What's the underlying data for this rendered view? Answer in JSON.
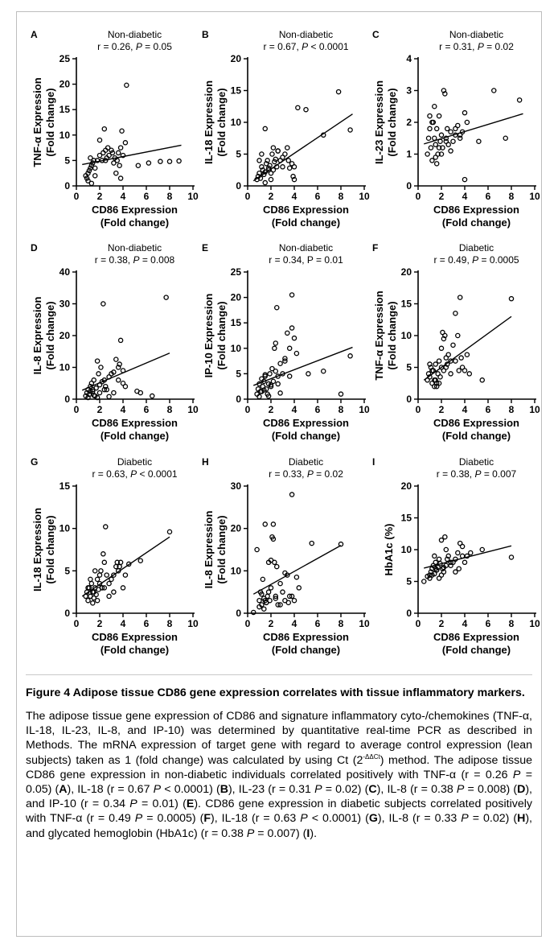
{
  "chart_data": [
    {
      "panel": "A",
      "title": "Non-diabetic",
      "stat_r": "r = 0.26, ",
      "stat_p_italic": "P",
      "stat_p_rest": " = 0.05",
      "type": "scatter",
      "xlabel": [
        "CD86 Expression",
        "(Fold change)"
      ],
      "ylabel": [
        "TNF-α Expression",
        "(Fold change)"
      ],
      "xlim": [
        0,
        10
      ],
      "ylim": [
        0,
        25
      ],
      "xticks": [
        0,
        2,
        4,
        6,
        8,
        10
      ],
      "yticks": [
        0,
        5,
        10,
        15,
        20,
        25
      ],
      "x": [
        0.8,
        1.0,
        1.1,
        1.2,
        1.3,
        1.4,
        1.5,
        1.6,
        0.9,
        1.2,
        1.0,
        1.3,
        1.6,
        1.8,
        2.0,
        2.2,
        2.3,
        2.5,
        2.6,
        2.7,
        2.8,
        3.0,
        3.1,
        3.3,
        3.5,
        3.6,
        3.7,
        3.8,
        3.9,
        4.0,
        4.2,
        2.0,
        2.4,
        2.5,
        3.2,
        3.4,
        3.8,
        4.3,
        5.3,
        6.2,
        7.2,
        8.0,
        8.8
      ],
      "y": [
        2.0,
        2.5,
        3.0,
        3.5,
        4.0,
        4.5,
        5.0,
        2.0,
        1.5,
        5.5,
        1.0,
        0.5,
        3.5,
        5.0,
        6.0,
        5.0,
        6.5,
        7.0,
        5.5,
        7.5,
        6.0,
        7.0,
        6.5,
        5.5,
        5.0,
        6.5,
        4.0,
        7.5,
        10.8,
        6.0,
        8.5,
        9.0,
        11.2,
        5.0,
        4.5,
        2.5,
        1.5,
        19.8,
        4.0,
        4.5,
        4.8,
        4.8,
        4.9
      ],
      "fit": [
        [
          0.5,
          4.2
        ],
        [
          9.0,
          8.0
        ]
      ]
    },
    {
      "panel": "B",
      "title": "Non-diabetic",
      "stat_r": "r = 0.67, ",
      "stat_p_italic": "P",
      "stat_p_rest": " < 0.0001",
      "type": "scatter",
      "xlabel": [
        "CD86 Expression",
        "(Fold change)"
      ],
      "ylabel": [
        "IL-18 Expression",
        "(Fold change)"
      ],
      "xlim": [
        0,
        10
      ],
      "ylim": [
        0,
        20
      ],
      "xticks": [
        0,
        2,
        4,
        6,
        8,
        10
      ],
      "yticks": [
        0,
        5,
        10,
        15,
        20
      ],
      "x": [
        0.8,
        0.9,
        1.0,
        1.1,
        1.2,
        1.3,
        1.4,
        1.5,
        1.6,
        1.7,
        1.8,
        1.9,
        2.0,
        2.1,
        2.2,
        2.3,
        2.4,
        2.5,
        2.6,
        2.8,
        3.0,
        3.2,
        3.4,
        3.6,
        3.8,
        3.9,
        4.0,
        1.0,
        1.2,
        1.5,
        1.8,
        2.2,
        2.6,
        3.0,
        3.5,
        4.0,
        4.3,
        5.0,
        6.5,
        7.8,
        8.8,
        1.5,
        2.0
      ],
      "y": [
        1.0,
        1.5,
        2.0,
        1.2,
        3.0,
        2.5,
        1.8,
        2.2,
        3.5,
        4.0,
        2.8,
        3.2,
        2.0,
        5.0,
        2.5,
        3.8,
        4.2,
        3.0,
        5.5,
        4.0,
        3.0,
        5.0,
        6.0,
        2.8,
        3.5,
        1.5,
        1.0,
        4.0,
        5.0,
        9.0,
        2.5,
        6.0,
        5.5,
        4.5,
        4.0,
        3.0,
        12.3,
        12.0,
        8.0,
        14.8,
        8.8,
        0.5,
        1.0
      ],
      "fit": [
        [
          0.5,
          0.8
        ],
        [
          9.0,
          11.3
        ]
      ]
    },
    {
      "panel": "C",
      "title": "Non-diabetic",
      "stat_r": "r = 0.31, ",
      "stat_p_italic": "P",
      "stat_p_rest": " = 0.02",
      "type": "scatter",
      "xlabel": [
        "CD86 Expression",
        "(Fold change)"
      ],
      "ylabel": [
        "IL-23 Expression",
        "(Fold change)"
      ],
      "xlim": [
        0,
        10
      ],
      "ylim": [
        0,
        4
      ],
      "xticks": [
        0,
        2,
        4,
        6,
        8,
        10
      ],
      "yticks": [
        0,
        1,
        2,
        3,
        4
      ],
      "x": [
        0.8,
        0.9,
        1.0,
        1.1,
        1.2,
        1.3,
        1.4,
        1.5,
        1.6,
        1.7,
        1.8,
        1.9,
        2.0,
        2.1,
        2.2,
        2.3,
        2.4,
        2.5,
        2.6,
        2.8,
        3.0,
        3.2,
        3.4,
        3.6,
        3.8,
        4.0,
        4.2,
        1.0,
        1.2,
        1.5,
        1.8,
        2.0,
        2.4,
        2.8,
        3.2,
        3.6,
        4.0,
        5.2,
        6.5,
        7.5,
        8.7,
        1.4,
        1.6
      ],
      "y": [
        1.0,
        1.5,
        1.8,
        1.2,
        0.8,
        2.0,
        1.5,
        1.3,
        1.8,
        1.0,
        2.2,
        1.4,
        1.6,
        1.2,
        3.0,
        2.9,
        1.5,
        1.8,
        1.3,
        1.7,
        1.4,
        1.6,
        1.9,
        1.6,
        1.7,
        2.3,
        2.0,
        2.2,
        2.0,
        0.9,
        1.2,
        1.0,
        1.4,
        1.1,
        1.8,
        1.5,
        0.2,
        1.4,
        3.0,
        1.5,
        2.7,
        2.5,
        0.7
      ],
      "fit": [
        [
          0.5,
          1.32
        ],
        [
          9.0,
          2.27
        ]
      ]
    },
    {
      "panel": "D",
      "title": "Non-diabetic",
      "stat_r": "r = 0.38, ",
      "stat_p_italic": "P",
      "stat_p_rest": " = 0.008",
      "type": "scatter",
      "xlabel": [
        "CD86 Expression",
        "(Fold change)"
      ],
      "ylabel": [
        "IL-8 Expression",
        "(Fold change)"
      ],
      "xlim": [
        0,
        10
      ],
      "ylim": [
        0,
        40
      ],
      "xticks": [
        0,
        2,
        4,
        6,
        8,
        10
      ],
      "yticks": [
        0,
        10,
        20,
        30,
        40
      ],
      "x": [
        0.8,
        0.9,
        1.0,
        1.1,
        1.2,
        1.3,
        1.4,
        1.5,
        1.6,
        1.7,
        1.8,
        1.9,
        2.0,
        2.1,
        2.2,
        2.3,
        2.4,
        2.5,
        2.6,
        2.8,
        3.0,
        3.2,
        3.4,
        3.6,
        3.8,
        4.0,
        4.2,
        1.0,
        1.2,
        1.5,
        1.8,
        2.0,
        2.4,
        2.8,
        3.2,
        3.6,
        4.0,
        5.2,
        5.5,
        6.5,
        7.7,
        1.4,
        3.7
      ],
      "y": [
        1.0,
        2.0,
        3.0,
        1.5,
        4.0,
        5.0,
        2.5,
        6.0,
        1.0,
        3.5,
        0.5,
        8.0,
        2.0,
        10.0,
        5.5,
        30.0,
        6.0,
        4.0,
        3.0,
        7.0,
        8.0,
        2.0,
        12.5,
        10.0,
        18.5,
        9.0,
        4.0,
        0.5,
        2.5,
        1.2,
        12.0,
        4.5,
        3.0,
        0.8,
        8.5,
        6.0,
        5.0,
        2.5,
        2.0,
        1.0,
        32.0,
        3.0,
        11.0
      ],
      "fit": [
        [
          0.5,
          2.8
        ],
        [
          8.0,
          14.5
        ]
      ]
    },
    {
      "panel": "E",
      "title": "Non-diabetic",
      "stat_r": "r = 0.34, P = 0.01",
      "type": "scatter",
      "xlabel": [
        "CD86 Expression",
        "(Fold change)"
      ],
      "ylabel": [
        "IP-10 Expression",
        "(Fold change)"
      ],
      "xlim": [
        0,
        10
      ],
      "ylim": [
        0,
        25
      ],
      "xticks": [
        0,
        2,
        4,
        6,
        8,
        10
      ],
      "yticks": [
        0,
        5,
        10,
        15,
        20,
        25
      ],
      "x": [
        0.8,
        0.9,
        1.0,
        1.1,
        1.2,
        1.3,
        1.4,
        1.5,
        1.6,
        1.7,
        1.8,
        1.9,
        2.0,
        2.1,
        2.2,
        2.3,
        2.4,
        2.5,
        2.6,
        2.8,
        3.0,
        3.2,
        3.4,
        3.6,
        3.8,
        4.0,
        4.2,
        1.0,
        1.2,
        1.5,
        1.8,
        2.0,
        2.4,
        2.8,
        3.2,
        3.6,
        3.8,
        5.2,
        6.5,
        8.0,
        8.8,
        1.4,
        2.6
      ],
      "y": [
        1.0,
        2.0,
        3.0,
        1.5,
        4.0,
        2.5,
        3.5,
        4.5,
        2.0,
        1.0,
        3.0,
        5.0,
        2.5,
        6.0,
        3.5,
        10.0,
        11.0,
        18.0,
        4.5,
        7.0,
        5.0,
        7.5,
        13.0,
        10.0,
        20.5,
        12.0,
        9.0,
        0.5,
        1.5,
        4.8,
        0.6,
        2.8,
        5.5,
        1.2,
        8.0,
        4.5,
        14.0,
        5.0,
        5.5,
        1.0,
        8.5,
        1.8,
        3.0
      ],
      "fit": [
        [
          0.5,
          2.7
        ],
        [
          9.0,
          10.2
        ]
      ]
    },
    {
      "panel": "F",
      "title": "Diabetic",
      "stat_r": "r = 0.49, ",
      "stat_p_italic": "P",
      "stat_p_rest": " = 0.0005",
      "type": "scatter",
      "xlabel": [
        "CD86 Expression",
        "(Fold change)"
      ],
      "ylabel": [
        "TNF-α Expression",
        "(Fold change)"
      ],
      "xlim": [
        0,
        10
      ],
      "ylim": [
        0,
        20
      ],
      "xticks": [
        0,
        2,
        4,
        6,
        8,
        10
      ],
      "yticks": [
        0,
        5,
        10,
        15,
        20
      ],
      "x": [
        0.8,
        0.9,
        1.0,
        1.1,
        1.2,
        1.3,
        1.4,
        1.5,
        1.6,
        1.7,
        1.8,
        1.9,
        2.0,
        2.1,
        2.2,
        2.3,
        2.4,
        2.5,
        2.6,
        2.8,
        3.0,
        3.2,
        3.4,
        3.6,
        3.8,
        4.0,
        4.2,
        1.0,
        1.2,
        1.5,
        1.8,
        2.0,
        2.4,
        2.8,
        3.2,
        3.5,
        3.7,
        4.4,
        5.5,
        8.0,
        1.4,
        1.6,
        2.2
      ],
      "y": [
        3.0,
        4.0,
        3.5,
        5.0,
        2.5,
        4.5,
        3.0,
        5.5,
        2.0,
        4.0,
        6.0,
        3.5,
        5.0,
        10.5,
        4.5,
        10.0,
        6.5,
        5.5,
        7.0,
        4.0,
        8.5,
        6.0,
        10.0,
        16.0,
        5.0,
        4.5,
        7.0,
        5.5,
        4.5,
        3.0,
        2.5,
        8.0,
        5.0,
        6.0,
        13.5,
        4.5,
        6.5,
        4.0,
        3.0,
        15.8,
        2.0,
        2.5,
        9.5
      ],
      "fit": [
        [
          0.5,
          3.0
        ],
        [
          8.0,
          13.0
        ]
      ]
    },
    {
      "panel": "G",
      "title": "Diabetic",
      "stat_r": "r = 0.63, ",
      "stat_p_italic": "P",
      "stat_p_rest": " < 0.0001",
      "type": "scatter",
      "xlabel": [
        "CD86 Expression",
        "(Fold change)"
      ],
      "ylabel": [
        "IL-18 Expression",
        "(Fold change)"
      ],
      "xlim": [
        0,
        10
      ],
      "ylim": [
        0,
        15
      ],
      "xticks": [
        0,
        2,
        4,
        6,
        8,
        10
      ],
      "yticks": [
        0,
        5,
        10,
        15
      ],
      "x": [
        0.8,
        0.9,
        1.0,
        1.1,
        1.2,
        1.3,
        1.4,
        1.5,
        1.6,
        1.7,
        1.8,
        1.9,
        2.0,
        2.1,
        2.2,
        2.3,
        2.4,
        2.5,
        2.6,
        2.8,
        3.0,
        3.2,
        3.4,
        3.6,
        3.8,
        4.0,
        4.2,
        1.0,
        1.2,
        1.5,
        1.8,
        2.0,
        2.4,
        2.8,
        3.2,
        3.5,
        3.7,
        4.5,
        5.5,
        8.0,
        1.4,
        1.6,
        2.2
      ],
      "y": [
        2.0,
        2.5,
        1.5,
        3.0,
        2.0,
        3.5,
        2.5,
        1.8,
        3.0,
        2.2,
        4.0,
        2.8,
        3.5,
        5.0,
        3.0,
        7.0,
        6.0,
        10.2,
        4.5,
        3.5,
        4.0,
        2.5,
        5.5,
        5.0,
        6.0,
        3.0,
        4.5,
        3.0,
        4.0,
        2.5,
        1.5,
        4.5,
        3.0,
        2.0,
        4.5,
        6.0,
        5.5,
        5.8,
        6.2,
        9.6,
        1.2,
        5.0,
        3.0
      ],
      "fit": [
        [
          0.5,
          2.0
        ],
        [
          8.0,
          9.0
        ]
      ]
    },
    {
      "panel": "H",
      "title": "Diabetic",
      "stat_r": "r = 0.33, ",
      "stat_p_italic": "P",
      "stat_p_rest": " = 0.02",
      "type": "scatter",
      "xlabel": [
        "CD86 Expression",
        "(Fold change)"
      ],
      "ylabel": [
        "IL-8 Expression",
        "(Fold change)"
      ],
      "xlim": [
        0,
        10
      ],
      "ylim": [
        0,
        30
      ],
      "xticks": [
        0,
        2,
        4,
        6,
        8,
        10
      ],
      "yticks": [
        0,
        10,
        20,
        30
      ],
      "x": [
        0.5,
        0.8,
        1.0,
        1.1,
        1.2,
        1.3,
        1.4,
        1.5,
        1.6,
        1.7,
        1.8,
        1.9,
        2.0,
        2.1,
        2.2,
        2.3,
        2.4,
        2.5,
        2.6,
        2.8,
        3.0,
        3.2,
        3.4,
        3.6,
        3.8,
        4.0,
        4.2,
        1.0,
        1.2,
        1.5,
        1.8,
        2.0,
        2.4,
        2.8,
        3.2,
        3.5,
        3.8,
        4.4,
        5.5,
        8.0,
        1.4,
        1.6,
        2.2
      ],
      "y": [
        0.2,
        15.0,
        3.0,
        5.0,
        2.0,
        8.0,
        3.5,
        21.0,
        2.5,
        4.0,
        12.0,
        3.0,
        6.0,
        18.0,
        21.0,
        12.0,
        4.0,
        11.0,
        2.0,
        7.0,
        5.0,
        3.0,
        9.0,
        4.0,
        28.0,
        3.0,
        8.5,
        1.5,
        4.5,
        3.0,
        5.0,
        12.5,
        3.5,
        2.0,
        9.5,
        2.5,
        4.0,
        6.0,
        16.5,
        16.3,
        1.0,
        2.5,
        17.5
      ],
      "fit": [
        [
          0.5,
          4.5
        ],
        [
          8.0,
          16.0
        ]
      ]
    },
    {
      "panel": "I",
      "title": "Diabetic",
      "stat_r": "r = 0.38, ",
      "stat_p_italic": "P",
      "stat_p_rest": " = 0.007",
      "type": "scatter",
      "xlabel": [
        "CD86 Expression",
        "(Fold change)"
      ],
      "ylabel": [
        "HbA1c (%)"
      ],
      "xlim": [
        0,
        10
      ],
      "ylim": [
        0,
        20
      ],
      "xticks": [
        0,
        2,
        4,
        6,
        8,
        10
      ],
      "yticks": [
        0,
        5,
        10,
        15,
        20
      ],
      "x": [
        0.5,
        0.8,
        1.0,
        1.1,
        1.2,
        1.3,
        1.4,
        1.5,
        1.6,
        1.7,
        1.8,
        1.9,
        2.0,
        2.1,
        2.2,
        2.3,
        2.4,
        2.5,
        2.6,
        2.8,
        3.0,
        3.2,
        3.4,
        3.6,
        3.8,
        4.0,
        4.2,
        1.0,
        1.2,
        1.5,
        1.8,
        2.0,
        2.4,
        2.8,
        3.2,
        3.5,
        3.8,
        4.5,
        5.5,
        8.0,
        1.4,
        1.6,
        2.2
      ],
      "y": [
        5.0,
        5.8,
        6.0,
        6.5,
        7.0,
        7.5,
        6.2,
        8.0,
        6.8,
        7.2,
        8.5,
        7.8,
        11.5,
        7.0,
        6.5,
        12.0,
        10.0,
        8.5,
        9.0,
        7.5,
        8.0,
        8.5,
        9.5,
        11.0,
        10.5,
        8.0,
        9.0,
        5.5,
        6.0,
        7.0,
        5.5,
        6.0,
        7.5,
        8.0,
        6.5,
        7.0,
        9.0,
        9.5,
        10.0,
        8.8,
        9.0,
        6.8,
        7.2
      ],
      "fit": [
        [
          0.5,
          7.1
        ],
        [
          8.0,
          10.6
        ]
      ]
    }
  ],
  "caption": {
    "title": "Figure 4 Adipose tissue CD86 gene expression correlates with tissue inflammatory markers.",
    "p1": "The adipose tissue gene expression of CD86 and signature inflammatory cyto-/chemokines (TNF-α, IL-18, IL-23, IL-8, and IP-10) was determined by quantitative real-time PCR as described in Methods. The mRNA expression of target gene with regard to average control expression (lean subjects) taken as 1 (fold change) was calculated by using Ct (2",
    "sup": "-ΔΔCt",
    "p2": ") method. The adipose tissue CD86 gene expression in non-diabetic individuals correlated positively with TNF-α (r = 0.26 ",
    "segments": [
      {
        "t": "P",
        "s": "i"
      },
      {
        "t": " = 0.05) ("
      },
      {
        "t": "A",
        "s": "b"
      },
      {
        "t": "), IL-18 (r = 0.67 "
      },
      {
        "t": "P",
        "s": "i"
      },
      {
        "t": " < 0.0001) ("
      },
      {
        "t": "B",
        "s": "b"
      },
      {
        "t": "), IL-23 (r = 0.31 "
      },
      {
        "t": "P",
        "s": "i"
      },
      {
        "t": " = 0.02) ("
      },
      {
        "t": "C",
        "s": "b"
      },
      {
        "t": "), IL-8 (r = 0.38 "
      },
      {
        "t": "P",
        "s": "i"
      },
      {
        "t": " = 0.008) ("
      },
      {
        "t": "D",
        "s": "b"
      },
      {
        "t": "), and IP-10 (r = 0.34 "
      },
      {
        "t": "P",
        "s": "i"
      },
      {
        "t": " = 0.01) ("
      },
      {
        "t": "E",
        "s": "b"
      },
      {
        "t": "). CD86 gene expression in diabetic subjects correlated positively with TNF-α (r = 0.49 "
      },
      {
        "t": "P",
        "s": "i"
      },
      {
        "t": " = 0.0005) ("
      },
      {
        "t": "F",
        "s": "b"
      },
      {
        "t": "), IL-18 (r = 0.63 "
      },
      {
        "t": "P",
        "s": "i"
      },
      {
        "t": " < 0.0001) ("
      },
      {
        "t": "G",
        "s": "b"
      },
      {
        "t": "), IL-8 (r = 0.33 "
      },
      {
        "t": "P",
        "s": "i"
      },
      {
        "t": " = 0.02) ("
      },
      {
        "t": "H",
        "s": "b"
      },
      {
        "t": "), and glycated hemoglobin (HbA1c) (r = 0.38 "
      },
      {
        "t": "P",
        "s": "i"
      },
      {
        "t": " = 0.007) ("
      },
      {
        "t": "I",
        "s": "b"
      },
      {
        "t": ")."
      }
    ]
  }
}
